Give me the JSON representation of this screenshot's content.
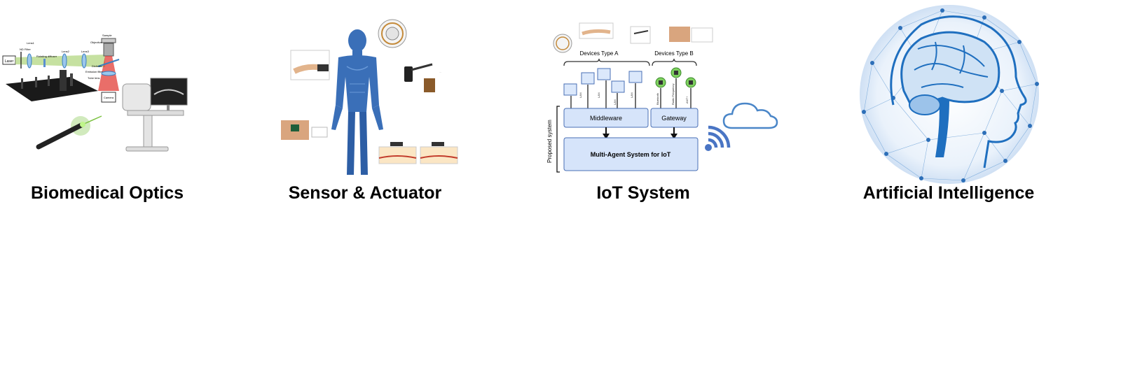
{
  "panels": [
    {
      "title": "Biomedical Optics",
      "labels": [
        "Laser",
        "ND Filter",
        "Lens1",
        "Rotating diffuser",
        "Lens2",
        "Lens3",
        "Sample",
        "Objective",
        "Dichroic",
        "Emission filter",
        "Tube lens",
        "Camera"
      ]
    },
    {
      "title": "Sensor & Actuator"
    },
    {
      "title": "IoT System",
      "devices_a": "Devices Type A",
      "devices_b": "Devices Type B",
      "middleware": "Middleware",
      "gateway": "Gateway",
      "mas": "Multi-Agent System for IoT",
      "proposed": "Proposed system",
      "link_labels": [
        "LAN",
        "LAN",
        "LAN",
        "LAN",
        "Bluetooth",
        "Radio Frequency",
        "ANT+"
      ]
    },
    {
      "title": "Artificial Intelligence"
    }
  ],
  "colors": {
    "laser_green": "#7cc242",
    "laser_red": "#e0302a",
    "body_blue": "#3a6fb8",
    "iot_box_fill": "#d6e4fa",
    "iot_box_stroke": "#4a6fb5",
    "cloud_blue": "#4a86c8",
    "ai_blue": "#1f6fbf"
  }
}
